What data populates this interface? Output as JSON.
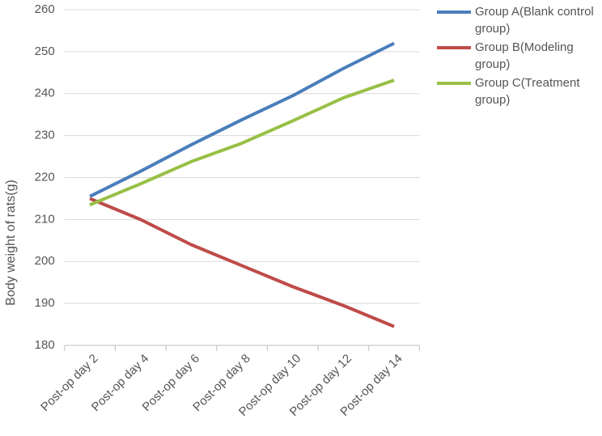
{
  "chart_data": {
    "type": "line",
    "y_label": "Body weight of rats(g)",
    "categories": [
      "Post-op day 2",
      "Post-op day 4",
      "Post-op day 6",
      "Post-op day 8",
      "Post-op day 10",
      "Post-op day 12",
      "Post-op day 14"
    ],
    "series": [
      {
        "name": "Group A(Blank control group)",
        "color": "#4a7ebb",
        "values": [
          215.5,
          221.5,
          227.8,
          233.8,
          239.5,
          246,
          252
        ]
      },
      {
        "name": "Group B(Modeling group)",
        "color": "#be4b48",
        "values": [
          215,
          210,
          204,
          199,
          194,
          189.5,
          184.5
        ]
      },
      {
        "name": "Group C(Treatment group)",
        "color": "#98c046",
        "values": [
          213.5,
          218.5,
          223.8,
          228.2,
          233.5,
          239,
          243.2
        ]
      }
    ],
    "ylim": [
      180,
      260
    ],
    "yticks": [
      180,
      190,
      200,
      210,
      220,
      230,
      240,
      250,
      260
    ],
    "grid": true,
    "legend": "right"
  }
}
